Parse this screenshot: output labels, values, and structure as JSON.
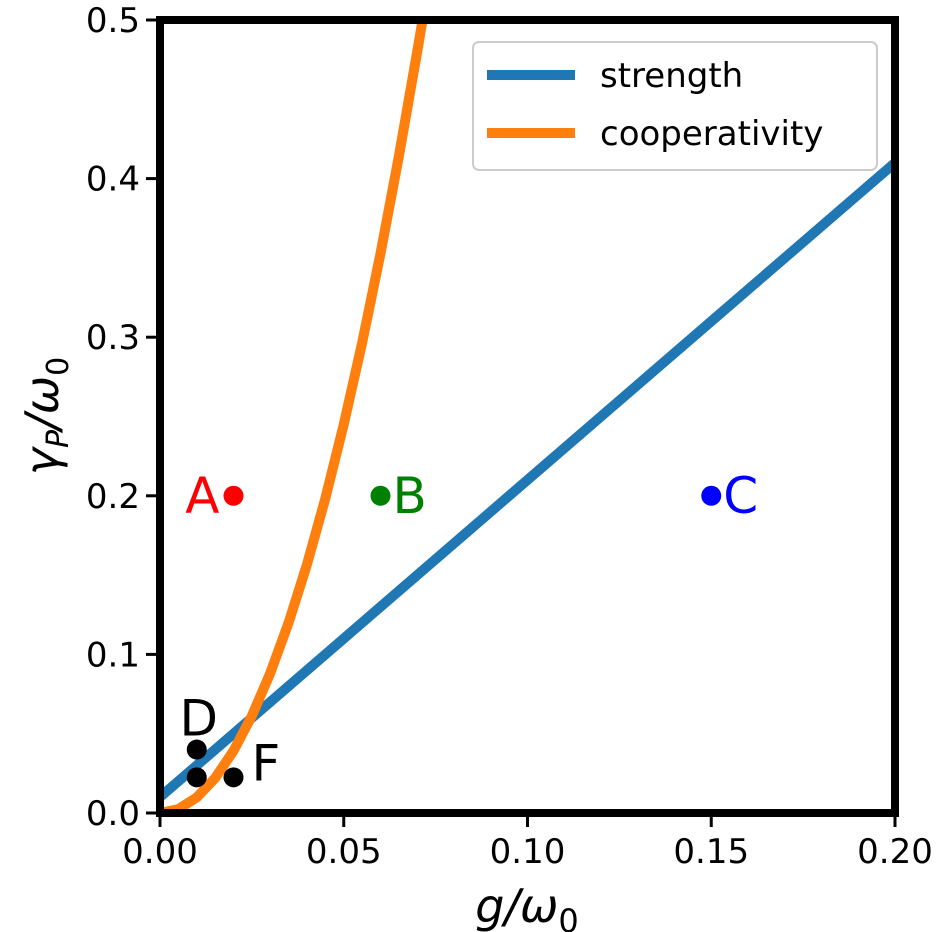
{
  "chart_data": {
    "type": "line",
    "title": "",
    "xlabel": "g/ω₀",
    "ylabel": "γ_P/ω₀",
    "xlim": [
      0.0,
      0.2
    ],
    "ylim": [
      0.0,
      0.5
    ],
    "x_ticks": [
      "0.00",
      "0.05",
      "0.10",
      "0.15",
      "0.20"
    ],
    "y_ticks": [
      "0.0",
      "0.1",
      "0.2",
      "0.3",
      "0.4",
      "0.5"
    ],
    "x_tick_values": [
      0.0,
      0.05,
      0.1,
      0.15,
      0.2
    ],
    "y_tick_values": [
      0.0,
      0.1,
      0.2,
      0.3,
      0.4,
      0.5
    ],
    "grid": false,
    "legend_position": "top-right",
    "series": [
      {
        "name": "strength",
        "color": "#1f77b4",
        "x": [
          0.0,
          0.05,
          0.1,
          0.15,
          0.2
        ],
        "y": [
          0.01,
          0.11,
          0.21,
          0.31,
          0.41
        ]
      },
      {
        "name": "cooperativity",
        "color": "#ff7f0e",
        "x": [
          0.0,
          0.005,
          0.01,
          0.015,
          0.02,
          0.025,
          0.03,
          0.035,
          0.04,
          0.045,
          0.05,
          0.055,
          0.06,
          0.065,
          0.07,
          0.0713
        ],
        "y": [
          0.0,
          0.00245,
          0.0098,
          0.02205,
          0.0392,
          0.06125,
          0.0882,
          0.12005,
          0.1568,
          0.19845,
          0.245,
          0.29645,
          0.3528,
          0.41405,
          0.4802,
          0.498
        ]
      }
    ],
    "points": [
      {
        "label": "A",
        "x": 0.02,
        "y": 0.2,
        "color": "#ff0000",
        "label_side": "left"
      },
      {
        "label": "B",
        "x": 0.06,
        "y": 0.2,
        "color": "#008000",
        "label_side": "right"
      },
      {
        "label": "C",
        "x": 0.15,
        "y": 0.2,
        "color": "#0000ff",
        "label_side": "right"
      },
      {
        "label": "D",
        "x": 0.01,
        "y": 0.04,
        "color": "#000000",
        "label_side": "above"
      },
      {
        "label": "",
        "x": 0.01,
        "y": 0.0225,
        "color": "#000000",
        "label_side": "none"
      },
      {
        "label": "F",
        "x": 0.02,
        "y": 0.0225,
        "color": "#000000",
        "label_side": "right"
      }
    ]
  }
}
